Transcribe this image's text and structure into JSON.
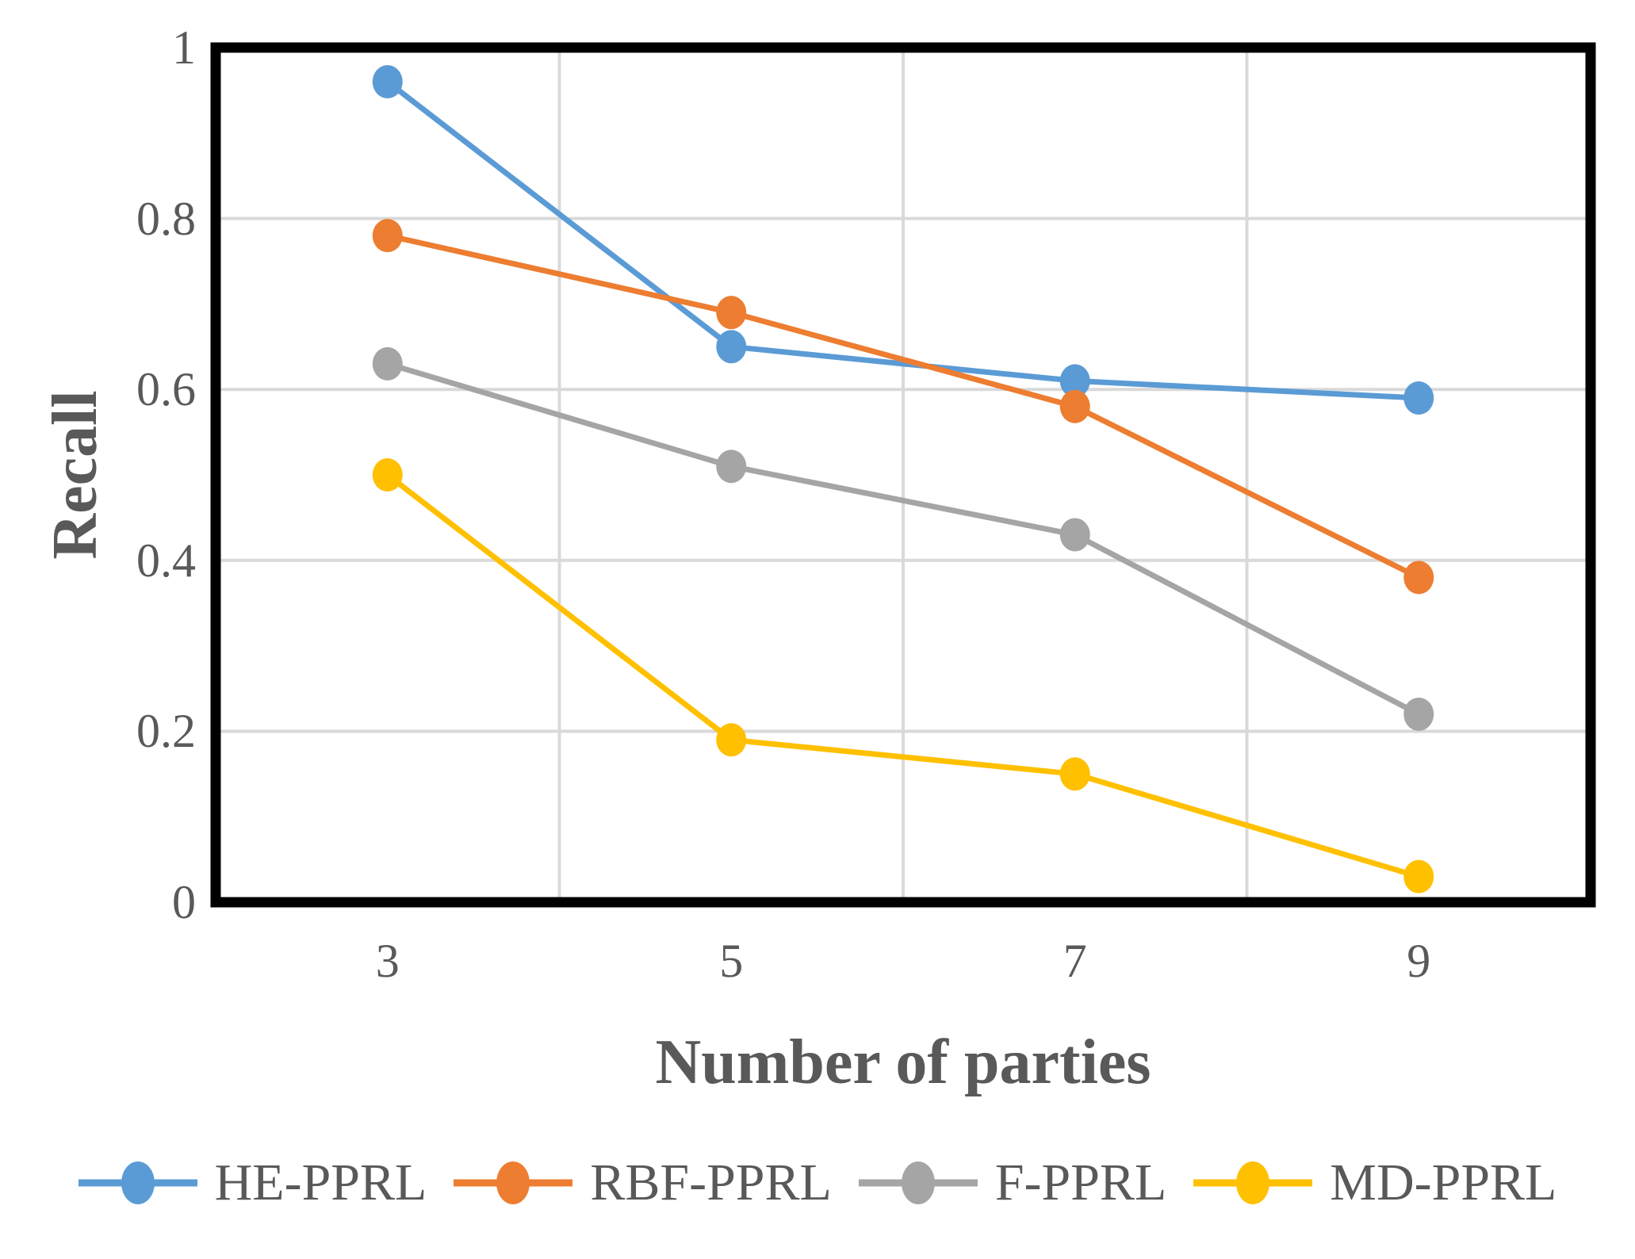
{
  "chart_data": {
    "type": "line",
    "title": "",
    "xlabel": "Number of parties",
    "ylabel": "Recall",
    "categories": [
      3,
      5,
      7,
      9
    ],
    "x_tick_labels": [
      "3",
      "5",
      "7",
      "9"
    ],
    "y_tick_labels": [
      "0",
      "0.2",
      "0.4",
      "0.6",
      "0.8",
      "1"
    ],
    "y_tick_values": [
      0,
      0.2,
      0.4,
      0.6,
      0.8,
      1
    ],
    "ylim": [
      0,
      1
    ],
    "grid": true,
    "legend_position": "bottom",
    "series": [
      {
        "name": "HE-PPRL",
        "color": "#5B9BD5",
        "values": [
          0.96,
          0.65,
          0.61,
          0.59
        ]
      },
      {
        "name": "RBF-PPRL",
        "color": "#ED7D31",
        "values": [
          0.78,
          0.69,
          0.58,
          0.38
        ]
      },
      {
        "name": "F-PPRL",
        "color": "#A5A5A5",
        "values": [
          0.63,
          0.51,
          0.43,
          0.22
        ]
      },
      {
        "name": "MD-PPRL",
        "color": "#FFC000",
        "values": [
          0.5,
          0.19,
          0.15,
          0.03
        ]
      }
    ]
  },
  "colors": {
    "text": "#595959",
    "gridline": "#D9D9D9",
    "plot_border": "#000000",
    "background": "#FFFFFF"
  }
}
